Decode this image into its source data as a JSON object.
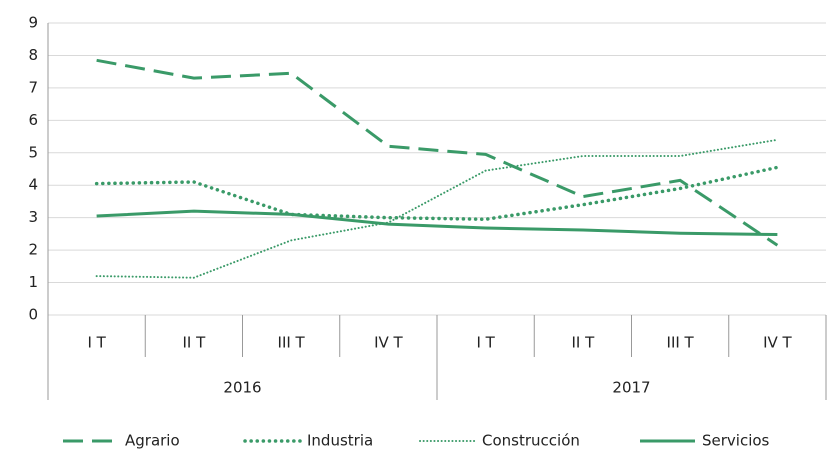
{
  "chart_data": {
    "type": "line",
    "groups": [
      {
        "name": "2016",
        "categories": [
          "I T",
          "II T",
          "III T",
          "IV T"
        ]
      },
      {
        "name": "2017",
        "categories": [
          "I T",
          "II T",
          "III T",
          "IV T"
        ]
      }
    ],
    "series": [
      {
        "name": "Agrario",
        "color": "#3a9a68",
        "style": "dashed",
        "values": [
          7.85,
          7.3,
          7.45,
          5.2,
          4.95,
          3.65,
          4.15,
          2.15
        ]
      },
      {
        "name": "Industria",
        "color": "#3a9a68",
        "style": "dotted",
        "values": [
          4.05,
          4.1,
          3.1,
          3.0,
          2.95,
          3.4,
          3.9,
          4.55
        ]
      },
      {
        "name": "Construcción",
        "color": "#3a9a68",
        "style": "fine-dotted",
        "values": [
          1.2,
          1.15,
          2.3,
          2.85,
          4.45,
          4.9,
          4.9,
          5.4
        ]
      },
      {
        "name": "Servicios",
        "color": "#3a9a68",
        "style": "solid",
        "values": [
          3.05,
          3.2,
          3.1,
          2.8,
          2.68,
          2.62,
          2.52,
          2.48
        ]
      }
    ],
    "ylim": [
      0,
      9
    ],
    "yticks": [
      0,
      1,
      2,
      3,
      4,
      5,
      6,
      7,
      8,
      9
    ],
    "grid": true,
    "legend": "bottom"
  }
}
